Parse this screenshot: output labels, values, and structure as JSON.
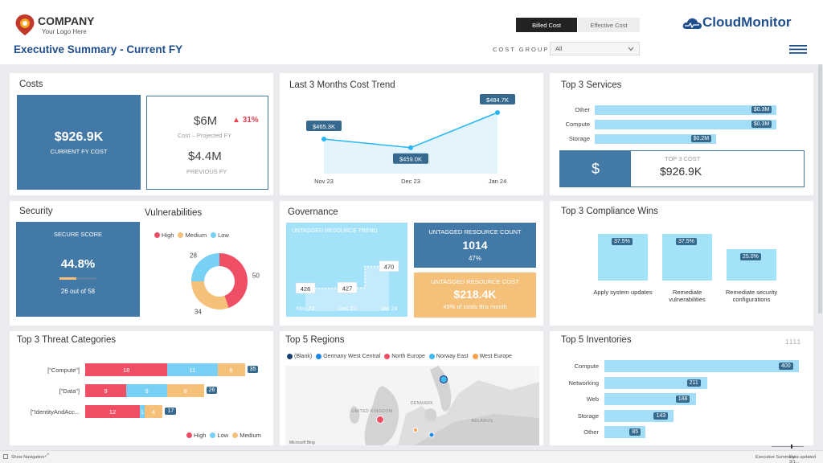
{
  "header": {
    "logo_name": "COMPANY",
    "logo_tag": "Your Logo Here",
    "page_title": "Executive Summary - Current FY",
    "toggle_billed": "Billed Cost",
    "toggle_effective": "Effective Cost",
    "cost_group_label": "COST GROUP",
    "cost_group_value": "All",
    "brand": "CloudMonitor"
  },
  "costs": {
    "title": "Costs",
    "current_value": "$926.9K",
    "current_label": "CURRENT FY COST",
    "projected_value": "$6M",
    "projected_change": "31%",
    "projected_label": "Cost – Projected FY",
    "previous_value": "$4.4M",
    "previous_label": "PREVIOUS FY"
  },
  "trend": {
    "title": "Last 3 Months Cost Trend"
  },
  "services": {
    "title": "Top 3 Services",
    "kpi_label": "TOP 3 COST",
    "kpi_value": "$926.9K",
    "kpi_icon": "$"
  },
  "security": {
    "title": "Security",
    "score_label": "SECURE SCORE",
    "score_value": "44.8%",
    "score_fraction": 0.448,
    "score_detail": "26 out of 58"
  },
  "vulnerabilities": {
    "title": "Vulnerabilities"
  },
  "governance": {
    "title": "Governance",
    "trend_label": "UNTAGGED RESOURCE TREND",
    "count_label": "UNTAGGED RESOURCE COUNT",
    "count_value": "1014",
    "count_pct": "47%",
    "cost_label": "UNTAGGED RESOURCE COST",
    "cost_value": "$218.4K",
    "cost_detail": "49% of costs this month"
  },
  "compliance": {
    "title": "Top 3 Compliance Wins"
  },
  "threats": {
    "title": "Top 3 Threat Categories"
  },
  "regions": {
    "title": "Top 5 Regions",
    "map_labels": [
      "UNITED KINGDOM",
      "DENMARK",
      "BELARUS"
    ],
    "attribution": "Microsoft Bing"
  },
  "inventories": {
    "title": "Top 5 Inventories",
    "tag": "1111"
  },
  "statusbar": {
    "left": "Show Navigation",
    "right_page": "Executive Summary",
    "right_updated": "Data updated 3/1..."
  },
  "colors": {
    "navy": "#1f4e8c",
    "steel_blue": "#4279a6",
    "light_blue": "#a3ddf7",
    "red": "#ee4f65",
    "sky": "#79d0f5",
    "orange": "#f5c07a",
    "up_red": "#e8404f"
  },
  "chart_data": [
    {
      "id": "cost-trend",
      "type": "area",
      "x": [
        "Nov 23",
        "Dec 23",
        "Jan 24"
      ],
      "values": [
        465.3,
        459.0,
        484.7
      ],
      "labels": [
        "$465.3K",
        "$459.0K",
        "$484.7K"
      ],
      "ylim": [
        440,
        490
      ]
    },
    {
      "id": "top-services",
      "type": "bar",
      "orientation": "horizontal",
      "categories": [
        "Other",
        "Compute",
        "Storage"
      ],
      "values": [
        0.3,
        0.3,
        0.2
      ],
      "labels": [
        "$0.3M",
        "$0.3M",
        "$0.2M"
      ],
      "xlim": [
        0,
        0.34
      ]
    },
    {
      "id": "vulnerabilities",
      "type": "pie",
      "donut": true,
      "series": [
        {
          "name": "High",
          "value": 50,
          "color": "#ee4f65"
        },
        {
          "name": "Medium",
          "value": 34,
          "color": "#f5c07a"
        },
        {
          "name": "Low",
          "value": 28,
          "color": "#79d0f5"
        }
      ],
      "legend": "top"
    },
    {
      "id": "untagged-trend",
      "type": "line",
      "x": [
        "Nov 23",
        "Dec 23",
        "Jan 24"
      ],
      "values": [
        426,
        427,
        470
      ],
      "ylim": [
        400,
        500
      ]
    },
    {
      "id": "compliance",
      "type": "bar",
      "categories": [
        "Apply system updates",
        "Remediate vulnerabilities",
        "Remediate security configurations"
      ],
      "values": [
        37.5,
        37.5,
        25.0
      ],
      "labels": [
        "37.5%",
        "37.5%",
        "25.0%"
      ],
      "ylim": [
        0,
        40
      ]
    },
    {
      "id": "threats",
      "type": "bar",
      "stacked": true,
      "orientation": "horizontal",
      "categories": [
        "[\"Compute\"]",
        "[\"Data\"]",
        "[\"IdentityAndAcc..."
      ],
      "series": [
        {
          "name": "High",
          "values": [
            18,
            9,
            12
          ],
          "color": "#ee4f65"
        },
        {
          "name": "Low",
          "values": [
            11,
            9,
            1
          ],
          "color": "#79d0f5"
        },
        {
          "name": "Medium",
          "values": [
            6,
            8,
            4
          ],
          "color": "#f5c07a"
        }
      ],
      "totals": [
        35,
        26,
        17
      ],
      "xlim": [
        0,
        37
      ],
      "legend": "bottom-right"
    },
    {
      "id": "regions",
      "type": "scatter",
      "series": [
        {
          "name": "(Blank)",
          "color": "#1a3e6e"
        },
        {
          "name": "Germany West Central",
          "color": "#1e88e5"
        },
        {
          "name": "North Europe",
          "color": "#ee4f65"
        },
        {
          "name": "Norway East",
          "color": "#3fb8f0"
        },
        {
          "name": "West Europe",
          "color": "#f5a04a"
        }
      ],
      "legend": "top-left"
    },
    {
      "id": "inventories",
      "type": "bar",
      "orientation": "horizontal",
      "categories": [
        "Compute",
        "Networking",
        "Web",
        "Storage",
        "Other"
      ],
      "values": [
        400,
        211,
        188,
        143,
        85
      ],
      "xlim": [
        0,
        410
      ]
    }
  ]
}
